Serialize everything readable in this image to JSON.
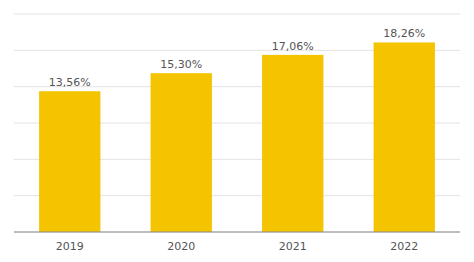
{
  "chart_data": {
    "type": "bar",
    "categories": [
      "2019",
      "2020",
      "2021",
      "2022"
    ],
    "values": [
      13.56,
      15.3,
      17.06,
      18.26
    ],
    "value_labels": [
      "13,56%",
      "15,30%",
      "17,06%",
      "18,26%"
    ],
    "data_labels": true,
    "color": "#F5C400",
    "ylim": [
      0,
      21
    ],
    "yticks": [
      0,
      3.5,
      7,
      10.5,
      14,
      17.5,
      21
    ],
    "grid": true,
    "tick_labels": "x"
  }
}
